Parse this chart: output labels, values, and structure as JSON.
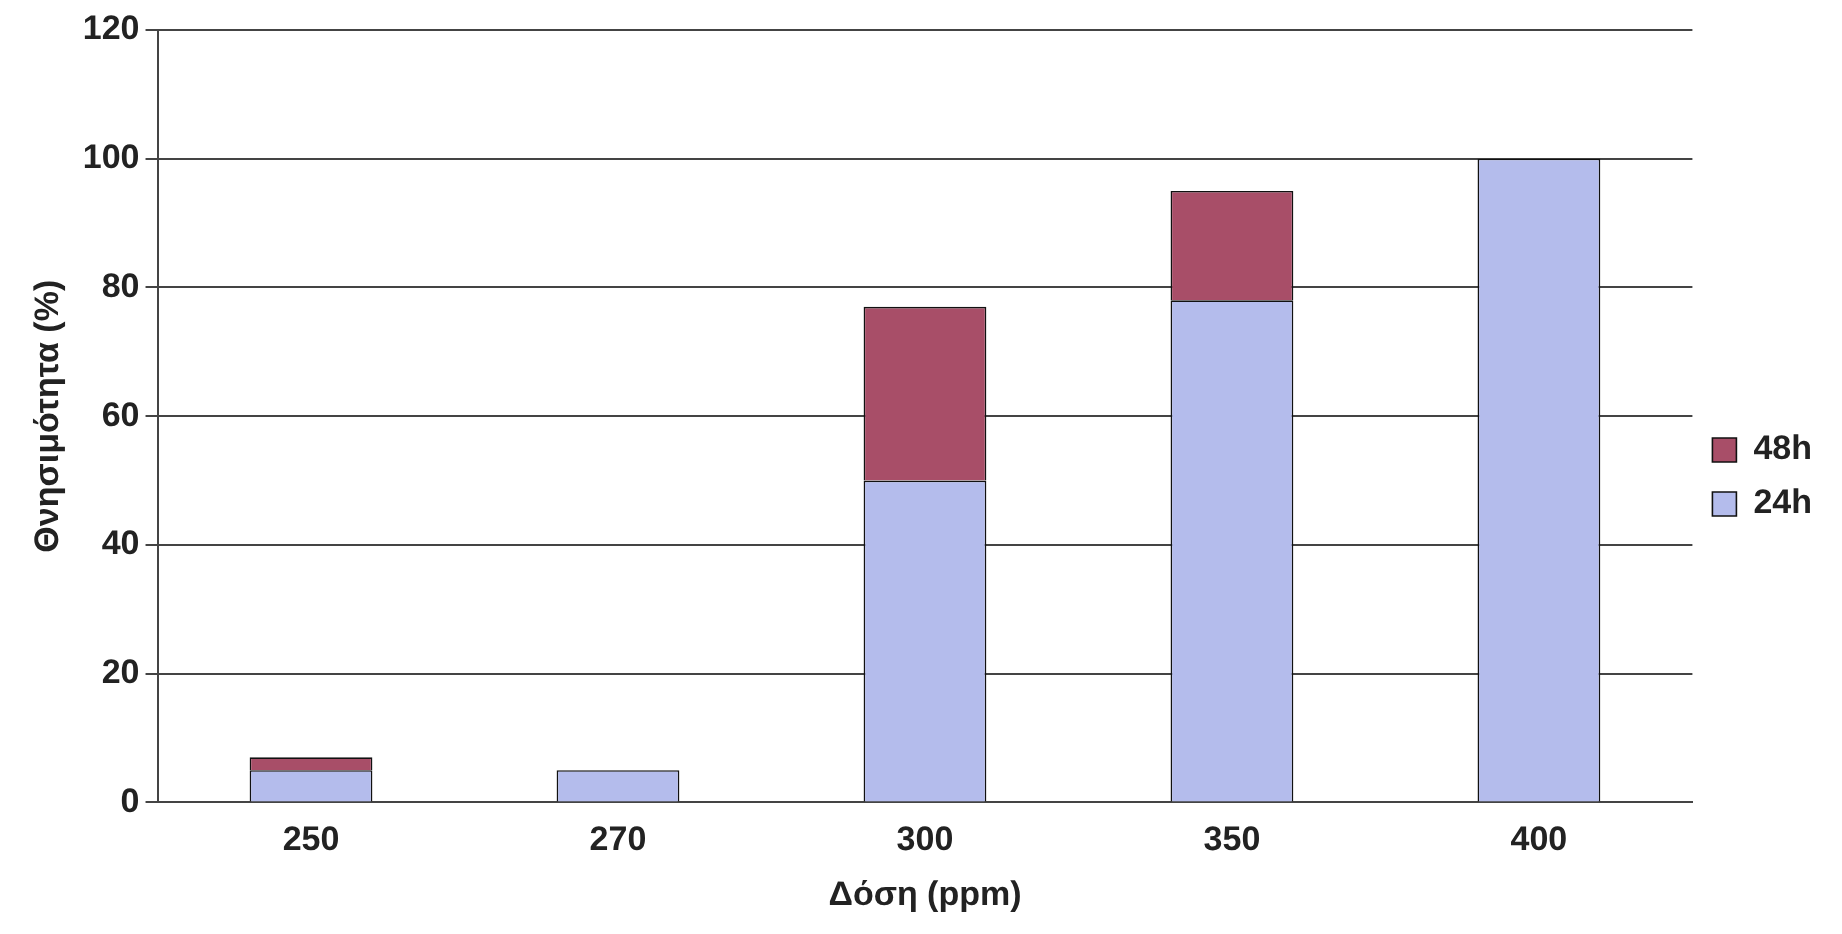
{
  "chart_data": {
    "type": "bar",
    "stacked": true,
    "xlabel": "Δόση (ppm)",
    "ylabel": "Θνησιμότητα (%)",
    "categories": [
      "250",
      "270",
      "300",
      "350",
      "400"
    ],
    "series": [
      {
        "name": "24h",
        "color": "#b4bcec",
        "values": [
          5,
          5,
          50,
          78,
          100
        ]
      },
      {
        "name": "48h",
        "color": "#a84e68",
        "values": [
          2,
          0,
          27,
          17,
          0
        ]
      }
    ],
    "ylim": [
      0,
      120
    ],
    "yticks": [
      0,
      20,
      40,
      60,
      80,
      100,
      120
    ],
    "grid": "y",
    "legend": "right"
  }
}
